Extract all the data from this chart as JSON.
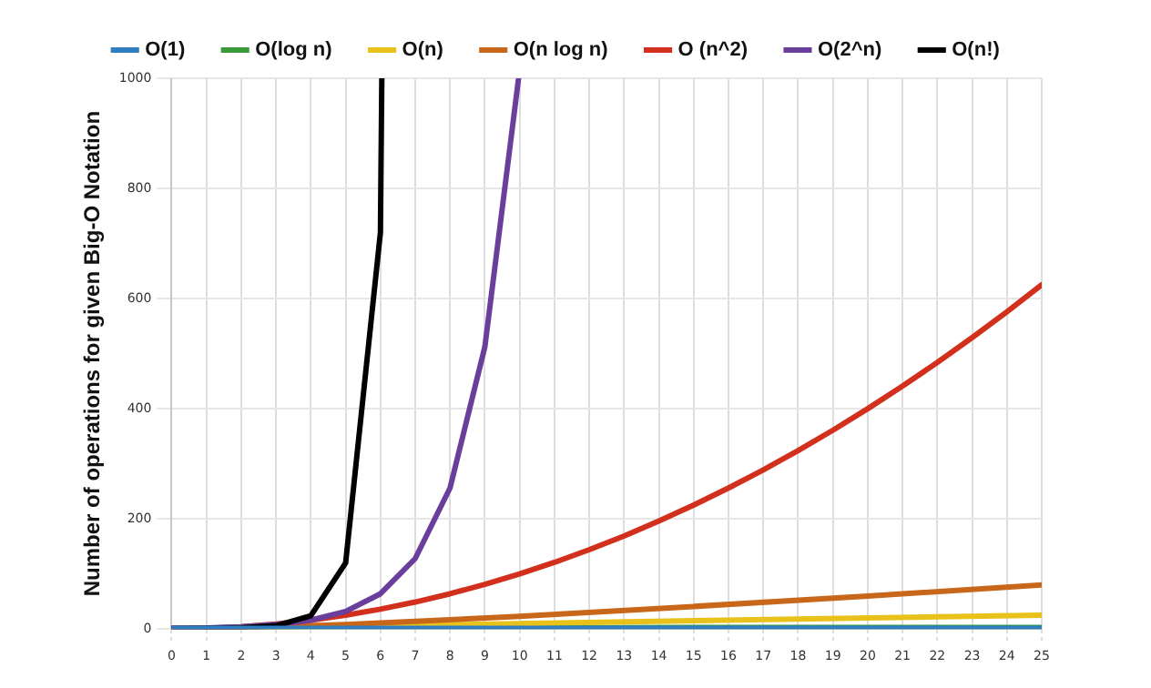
{
  "chart_data": {
    "type": "line",
    "ylabel": "Number of operations for given Big-O Notation",
    "xlim": [
      0,
      25
    ],
    "xticks": [
      0,
      1,
      2,
      3,
      4,
      5,
      6,
      7,
      8,
      9,
      10,
      11,
      12,
      13,
      14,
      15,
      16,
      17,
      18,
      19,
      20,
      21,
      22,
      23,
      24,
      25
    ],
    "ylim": [
      0,
      1000
    ],
    "yticks": [
      0,
      200,
      400,
      600,
      800,
      1000
    ],
    "grid": true,
    "legend": "top",
    "marker": "none",
    "line_style": "solid",
    "series": [
      {
        "name": "O(1)",
        "color": "#2f7ec1",
        "x": [
          0,
          25
        ],
        "values": [
          1,
          1
        ]
      },
      {
        "name": "O(log n)",
        "color": "#3a9a3a",
        "x": [
          1,
          2,
          5,
          10,
          15,
          20,
          25
        ],
        "values": [
          0,
          1,
          2,
          2,
          3,
          3,
          3
        ]
      },
      {
        "name": "O(n)",
        "color": "#e8c21a",
        "x": [
          0,
          25
        ],
        "values": [
          0,
          25
        ]
      },
      {
        "name": "O(n log n)",
        "color": "#c8671a",
        "x": [
          1,
          5,
          10,
          15,
          20,
          25
        ],
        "values": [
          0,
          8,
          23,
          41,
          60,
          80
        ]
      },
      {
        "name": "O (n^2)",
        "color": "#d2301c",
        "x": [
          0,
          1,
          2,
          3,
          4,
          5,
          6,
          7,
          8,
          9,
          10,
          11,
          12,
          13,
          14,
          15,
          16,
          17,
          18,
          19,
          20,
          21,
          22,
          23,
          24,
          25
        ],
        "values": [
          0,
          1,
          4,
          9,
          16,
          25,
          36,
          49,
          64,
          81,
          100,
          121,
          144,
          169,
          196,
          225,
          256,
          289,
          324,
          361,
          400,
          441,
          484,
          529,
          576,
          625
        ]
      },
      {
        "name": "O(2^n)",
        "color": "#6a3f9c",
        "x": [
          0,
          1,
          2,
          3,
          4,
          5,
          6,
          7,
          8,
          9,
          9.97
        ],
        "values": [
          1,
          2,
          4,
          8,
          16,
          32,
          64,
          128,
          256,
          512,
          1000
        ]
      },
      {
        "name": "O(n!)",
        "color": "#000000",
        "x": [
          0,
          1,
          2,
          3,
          4,
          5,
          6,
          6.04
        ],
        "values": [
          1,
          1,
          2,
          6,
          24,
          120,
          720,
          1000
        ]
      }
    ]
  }
}
